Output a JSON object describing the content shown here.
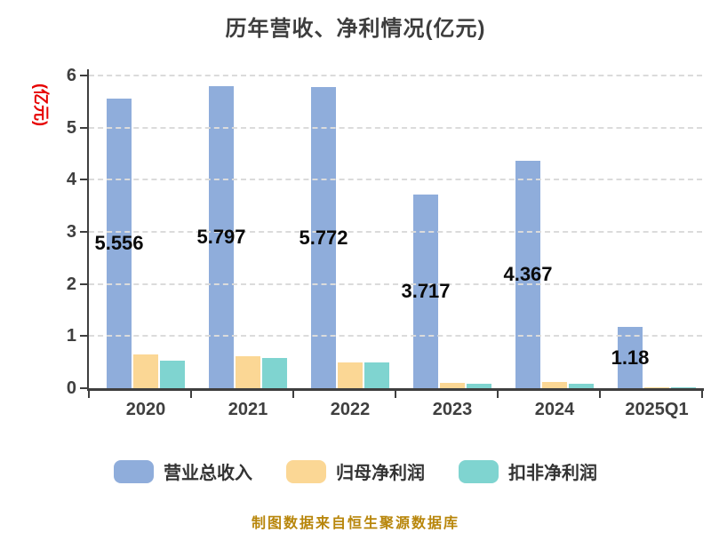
{
  "chart_data": {
    "type": "bar",
    "title": "历年营收、净利情况(亿元)",
    "ylabel": "(亿元)",
    "xlabel": "",
    "categories": [
      "2020",
      "2021",
      "2022",
      "2023",
      "2024",
      "2025Q1"
    ],
    "series": [
      {
        "key": "total-revenue",
        "name": "营业总收入",
        "color": "#8faddb",
        "values": [
          5.556,
          5.797,
          5.772,
          3.717,
          4.367,
          1.18
        ],
        "labels": [
          "5.556",
          "5.797",
          "5.772",
          "3.717",
          "4.367",
          "1.18"
        ]
      },
      {
        "key": "net-profit-attributable",
        "name": "归母净利润",
        "color": "#fbd795",
        "values": [
          0.65,
          0.62,
          0.5,
          0.11,
          0.12,
          0.02
        ]
      },
      {
        "key": "non-gaap-net-profit",
        "name": "扣非净利润",
        "color": "#7fd4d0",
        "values": [
          0.53,
          0.58,
          0.49,
          0.09,
          0.09,
          0.015
        ]
      }
    ],
    "ylim": [
      0,
      6
    ],
    "yticks": [
      0,
      1,
      2,
      3,
      4,
      5,
      6
    ],
    "grid": true,
    "grid_style": "dashed",
    "legend_position": "bottom"
  },
  "colors": {
    "background": "#ffffff",
    "title_text": "#3d3d3d",
    "axis": "#3f3f3f",
    "gridline": "#dbdbdb",
    "ylabel_text": "#e60000",
    "value_label_text": "#0a0a0a",
    "footer_text": "#b8860b"
  },
  "footer": {
    "text": "制图数据来自恒生聚源数据库"
  }
}
